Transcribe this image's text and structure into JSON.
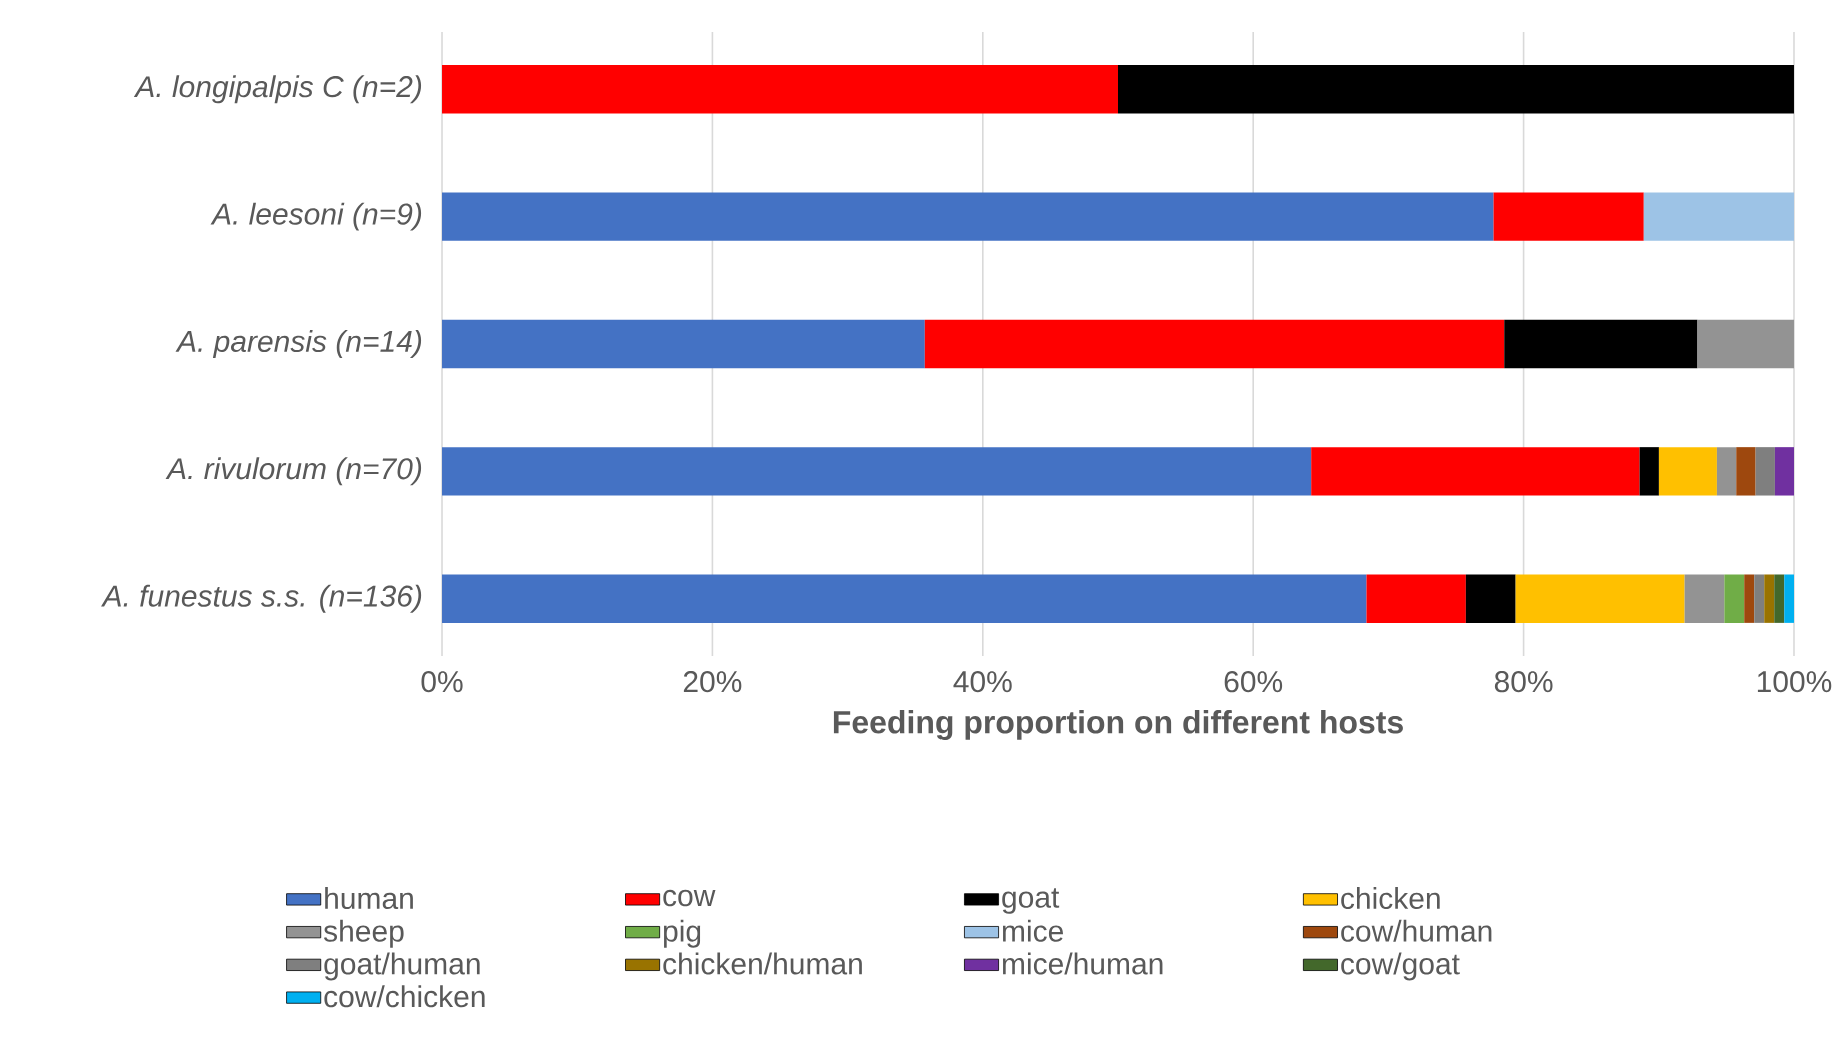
{
  "chart_data": {
    "type": "bar",
    "orientation": "horizontal",
    "stacked": true,
    "categories": [
      "A. longipalpis C (n=2)",
      "A. leesoni (n=9)",
      "A. parensis (n=14)",
      "A. rivulorum (n=70)",
      "A. funestus s.s. (n=136)"
    ],
    "xlabel": "Feeding proportion on different hosts",
    "xlim": [
      0,
      100
    ],
    "xticks": [
      {
        "value": 0,
        "label": "0%"
      },
      {
        "value": 20,
        "label": "20%"
      },
      {
        "value": 40,
        "label": "40%"
      },
      {
        "value": 60,
        "label": "60%"
      },
      {
        "value": 80,
        "label": "80%"
      },
      {
        "value": 100,
        "label": "100%"
      }
    ],
    "grid": "x",
    "legend": "bottom",
    "series": [
      {
        "name": "human",
        "color": "#4472c4",
        "values": [
          null,
          77.78,
          35.71,
          64.29,
          68.38
        ]
      },
      {
        "name": "cow",
        "color": "#ff0000",
        "values": [
          50,
          11.11,
          42.86,
          24.29,
          7.35
        ]
      },
      {
        "name": "goat",
        "color": "#000000",
        "values": [
          50,
          null,
          14.29,
          1.43,
          3.68
        ]
      },
      {
        "name": "chicken",
        "color": "#ffc000",
        "values": [
          null,
          null,
          null,
          4.29,
          12.5
        ]
      },
      {
        "name": "sheep",
        "color": "#939393",
        "values": [
          null,
          null,
          7.14,
          1.43,
          2.94
        ]
      },
      {
        "name": "pig",
        "color": "#70ad47",
        "values": [
          null,
          null,
          null,
          null,
          1.47
        ]
      },
      {
        "name": "mice",
        "color": "#9dc3e6",
        "values": [
          null,
          11.11,
          null,
          null,
          null
        ]
      },
      {
        "name": "cow/human",
        "color": "#9e480e",
        "values": [
          null,
          null,
          null,
          1.43,
          0.74
        ]
      },
      {
        "name": "goat/human",
        "color": "#7f7f7f",
        "values": [
          null,
          null,
          null,
          1.43,
          0.74
        ]
      },
      {
        "name": "chicken/human",
        "color": "#997300",
        "values": [
          null,
          null,
          null,
          null,
          0.74
        ]
      },
      {
        "name": "mice/human",
        "color": "#7030a0",
        "values": [
          null,
          null,
          null,
          1.41,
          null
        ]
      },
      {
        "name": "cow/goat",
        "color": "#43682b",
        "values": [
          null,
          null,
          null,
          null,
          0.74
        ]
      },
      {
        "name": "cow/chicken",
        "color": "#00b0f0",
        "values": [
          null,
          null,
          null,
          null,
          0.72
        ]
      }
    ]
  }
}
